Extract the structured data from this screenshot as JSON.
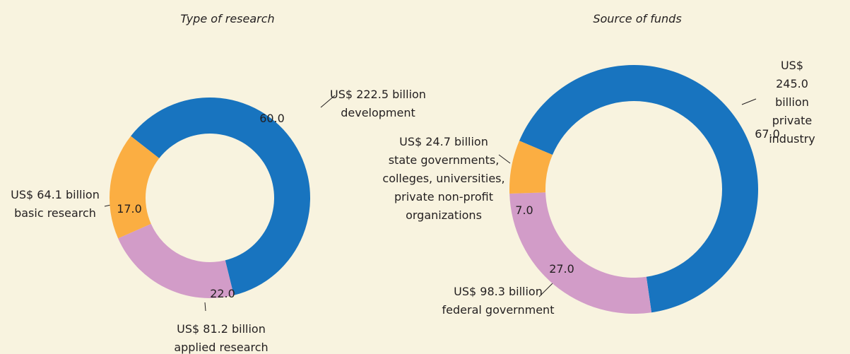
{
  "chart_data": [
    {
      "type": "pie",
      "donut": true,
      "title": "Type of research",
      "categories": [
        "development",
        "applied research",
        "basic research"
      ],
      "values": [
        60,
        22,
        17
      ],
      "value_labels": [
        "60.0",
        "22.0",
        "17.0"
      ],
      "amount_labels": [
        "US$ 222.5 billion",
        "US$ 81.2 billion",
        "US$ 64.1 billion"
      ],
      "colors": [
        "#1874bf",
        "#d29cc8",
        "#fbae42"
      ]
    },
    {
      "type": "pie",
      "donut": true,
      "title": "Source of funds",
      "categories": [
        "private industry",
        "federal government",
        "state governments,\ncolleges, universities,\nprivate non-profit\norganizations"
      ],
      "values": [
        67,
        27,
        7
      ],
      "value_labels": [
        "67.0",
        "27.0",
        "7.0"
      ],
      "amount_labels": [
        "US$ 245.0 billion",
        "US$ 98.3 billion",
        "US$ 24.7 billion"
      ],
      "colors": [
        "#1874bf",
        "#d29cc8",
        "#fbae42"
      ]
    }
  ]
}
